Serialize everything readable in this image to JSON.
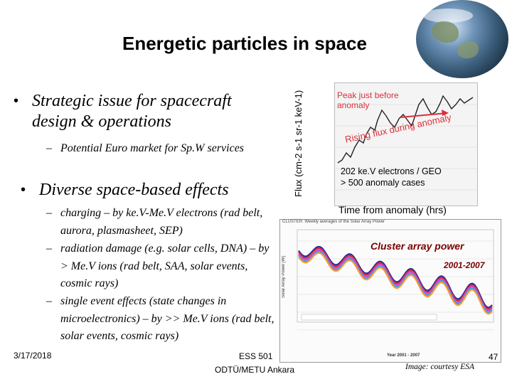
{
  "slide": {
    "title": "Energetic particles in space",
    "bullets": [
      {
        "text": "Strategic issue for spacecraft design & operations",
        "sub": [
          "Potential Euro market for Sp.W services"
        ]
      },
      {
        "text": "Diverse space-based effects",
        "sub": [
          "charging – by ke.V-Me.V electrons (rad belt, aurora, plasmasheet, SEP)",
          "radiation damage (e.g. solar cells, DNA) – by > Me.V ions (rad belt, SAA, solar events, cosmic rays)",
          "single event effects (state changes in microelectronics) – by >> Me.V ions (rad belt, solar events, cosmic rays)"
        ]
      }
    ],
    "footer": {
      "date": "3/17/2018",
      "course": "ESS 501",
      "institution": "ODTÜ/METU Ankara",
      "page": "47"
    },
    "image_credit": "Image: courtesy ESA"
  },
  "flux_chart": {
    "ylabel": "Flux (cm-2 s-1 sr-1 keV-1)",
    "xlabel": "Time from anomaly (hrs)",
    "annotations": {
      "peak": "Peak just before anomaly",
      "rising": "Rising flux during anomaly",
      "info_line1": "202 ke.V electrons / GEO",
      "info_line2": "> 500 anomaly cases"
    },
    "colors": {
      "annotation": "#d8303a",
      "curve": "#222222"
    }
  },
  "cluster_chart": {
    "header": "CLUSTER: Weekly averages of the Solar Array Power",
    "ylabel": "Solar Array Power [W]",
    "xlabel": "Year 2001 - 2007",
    "annotation_title": "Cluster array power",
    "annotation_years": "2001-2007",
    "series_colors": [
      "#2a2a9a",
      "#d03030",
      "#e040e0",
      "#3aa0e0",
      "#ff9a30"
    ],
    "colors": {
      "annotation": "#7a0000"
    }
  }
}
